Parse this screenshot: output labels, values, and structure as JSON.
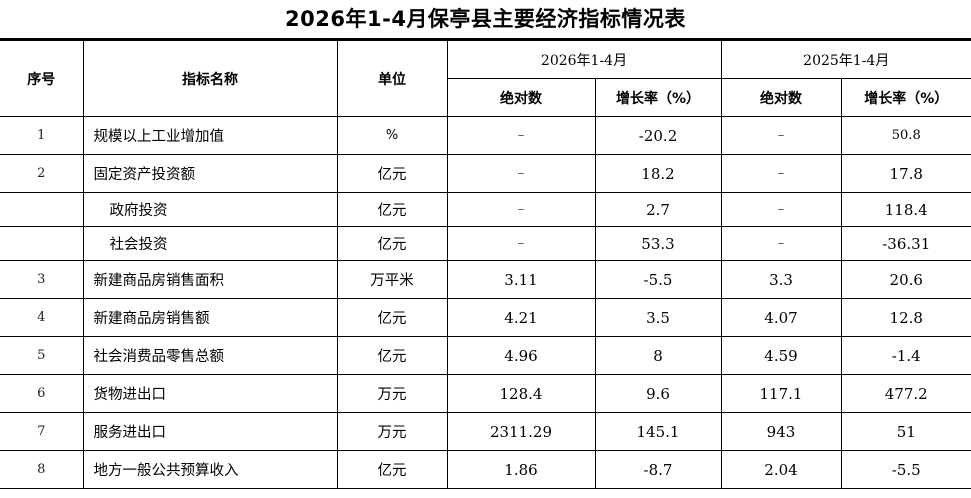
{
  "title": "2026年1-4月保亭县主要经济指标情况表",
  "header": {
    "seq": "序号",
    "indicator": "指标名称",
    "unit": "单位",
    "period_current": "2026年1-4月",
    "period_prev": "2025年1-4月",
    "absolute": "绝对数",
    "growth": "增长率（%）"
  },
  "rows": [
    {
      "seq": "1",
      "name": "规模以上工业增加值",
      "unit": "%",
      "cur_abs": "–",
      "cur_growth": "-20.2",
      "prev_abs": "–",
      "prev_growth": "50.8"
    },
    {
      "seq": "2",
      "name": "固定资产投资额",
      "unit": "亿元",
      "cur_abs": "–",
      "cur_growth": "18.2",
      "prev_abs": "–",
      "prev_growth": "17.8"
    },
    {
      "seq": "",
      "name": "政府投资",
      "unit": "亿元",
      "cur_abs": "–",
      "cur_growth": "2.7",
      "prev_abs": "–",
      "prev_growth": "118.4"
    },
    {
      "seq": "",
      "name": "社会投资",
      "unit": "亿元",
      "cur_abs": "–",
      "cur_growth": "53.3",
      "prev_abs": "–",
      "prev_growth": "-36.31"
    },
    {
      "seq": "3",
      "name": "新建商品房销售面积",
      "unit": "万平米",
      "cur_abs": "3.11",
      "cur_growth": "-5.5",
      "prev_abs": "3.3",
      "prev_growth": "20.6"
    },
    {
      "seq": "4",
      "name": "新建商品房销售额",
      "unit": "亿元",
      "cur_abs": "4.21",
      "cur_growth": "3.5",
      "prev_abs": "4.07",
      "prev_growth": "12.8"
    },
    {
      "seq": "5",
      "name": "社会消费品零售总额",
      "unit": "亿元",
      "cur_abs": "4.96",
      "cur_growth": "8",
      "prev_abs": "4.59",
      "prev_growth": "-1.4"
    },
    {
      "seq": "6",
      "name": "货物进出口",
      "unit": "万元",
      "cur_abs": "128.4",
      "cur_growth": "9.6",
      "prev_abs": "117.1",
      "prev_growth": "477.2"
    },
    {
      "seq": "7",
      "name": "服务进出口",
      "unit": "万元",
      "cur_abs": "2311.29",
      "cur_growth": "145.1",
      "prev_abs": "943",
      "prev_growth": "51"
    },
    {
      "seq": "8",
      "name": "地方一般公共预算收入",
      "unit": "亿元",
      "cur_abs": "1.86",
      "cur_growth": "-8.7",
      "prev_abs": "2.04",
      "prev_growth": "-5.5"
    }
  ]
}
